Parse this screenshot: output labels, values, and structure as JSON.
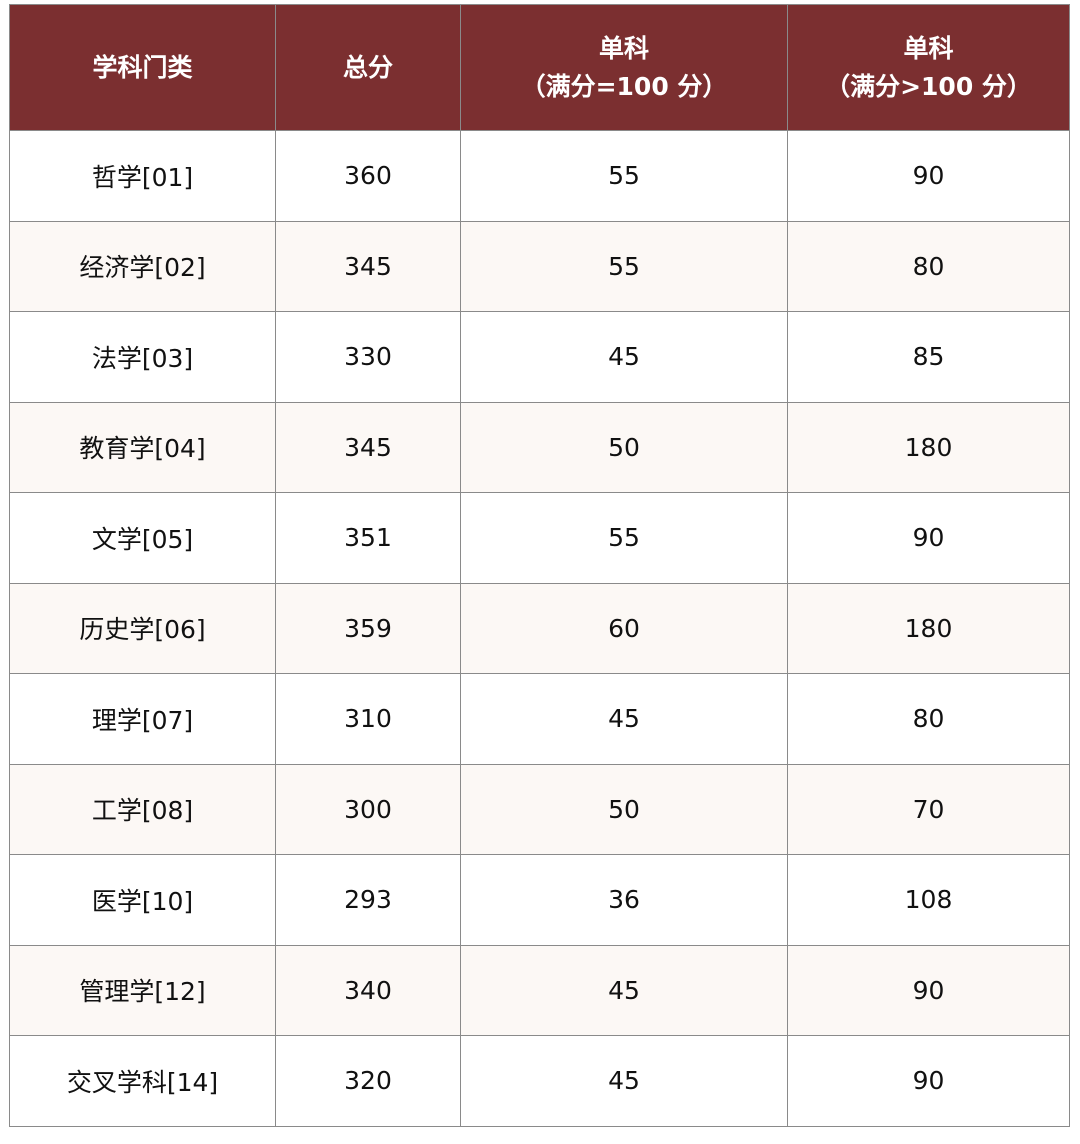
{
  "table": {
    "headers": [
      {
        "line1": "学科门类",
        "line2": ""
      },
      {
        "line1": "总分",
        "line2": ""
      },
      {
        "line1": "单科",
        "line2": "（满分=100 分）"
      },
      {
        "line1": "单科",
        "line2": "（满分>100 分）"
      }
    ],
    "rows": [
      [
        "哲学[01]",
        "360",
        "55",
        "90"
      ],
      [
        "经济学[02]",
        "345",
        "55",
        "80"
      ],
      [
        "法学[03]",
        "330",
        "45",
        "85"
      ],
      [
        "教育学[04]",
        "345",
        "50",
        "180"
      ],
      [
        "文学[05]",
        "351",
        "55",
        "90"
      ],
      [
        "历史学[06]",
        "359",
        "60",
        "180"
      ],
      [
        "理学[07]",
        "310",
        "45",
        "80"
      ],
      [
        "工学[08]",
        "300",
        "50",
        "70"
      ],
      [
        "医学[10]",
        "293",
        "36",
        "108"
      ],
      [
        "管理学[12]",
        "340",
        "45",
        "90"
      ],
      [
        "交叉学科[14]",
        "320",
        "45",
        "90"
      ]
    ]
  },
  "colors": {
    "header_bg": "#7b2f30",
    "alt_row_bg": "#fcf8f5"
  }
}
